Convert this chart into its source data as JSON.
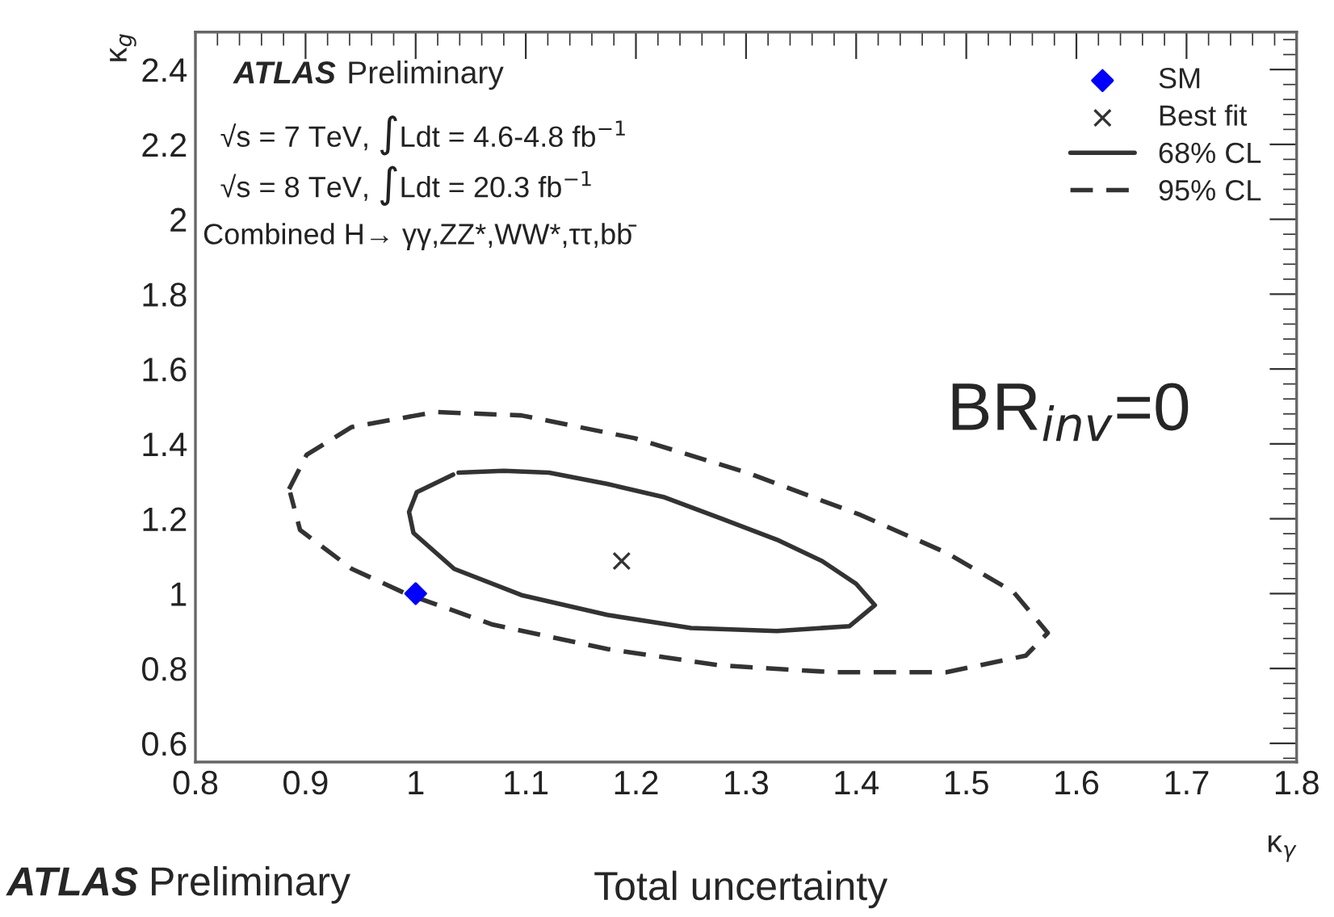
{
  "chart_data": {
    "type": "line",
    "xlabel": "κ$_{γ}$",
    "ylabel": "κ$_{g}$",
    "xlim": [
      0.8,
      1.8
    ],
    "ylim": [
      0.55,
      2.5
    ],
    "xticks": [
      0.8,
      0.9,
      1,
      1.1,
      1.2,
      1.3,
      1.4,
      1.5,
      1.6,
      1.7,
      1.8
    ],
    "yticks": [
      0.6,
      0.8,
      1,
      1.2,
      1.4,
      1.6,
      1.8,
      2,
      2.2,
      2.4
    ],
    "grid": false,
    "legend": "top right",
    "series": [
      {
        "name": "SM",
        "type": "scatter",
        "marker": "diamond",
        "color": "#0000ff",
        "x": [
          1.0
        ],
        "values": [
          1.0
        ]
      },
      {
        "name": "Best fit",
        "type": "scatter",
        "marker": "cross",
        "color": "#333333",
        "x": [
          1.187
        ],
        "values": [
          1.087
        ]
      },
      {
        "name": "68% CL",
        "type": "line",
        "line_style": "solid",
        "color": "#333333",
        "x": [
          1.039,
          1.08,
          1.121,
          1.174,
          1.225,
          1.277,
          1.328,
          1.369,
          1.4,
          1.417,
          1.394,
          1.328,
          1.25,
          1.174,
          1.096,
          1.035,
          0.998,
          0.994,
          1.001,
          1.034
        ],
        "values": [
          1.323,
          1.328,
          1.323,
          1.293,
          1.258,
          1.201,
          1.144,
          1.087,
          1.026,
          0.969,
          0.913,
          0.9,
          0.908,
          0.943,
          0.996,
          1.066,
          1.162,
          1.218,
          1.271,
          1.318
        ]
      },
      {
        "name": "95% CL",
        "line_style": "dashed",
        "color": "#333333",
        "x": [
          0.885,
          0.901,
          0.942,
          1.018,
          1.096,
          1.199,
          1.301,
          1.404,
          1.482,
          1.543,
          1.574,
          1.554,
          1.482,
          1.379,
          1.277,
          1.174,
          1.07,
          0.991,
          0.942,
          0.895,
          0.886
        ],
        "values": [
          1.279,
          1.371,
          1.445,
          1.485,
          1.476,
          1.415,
          1.323,
          1.21,
          1.109,
          1.004,
          0.895,
          0.834,
          0.79,
          0.79,
          0.808,
          0.852,
          0.917,
          1.0,
          1.066,
          1.17,
          1.27
        ]
      }
    ],
    "annotations": [
      "ATLAS Preliminary",
      "√s = 7 TeV, ∫Ldt = 4.6-4.8 fb$^{−1}$",
      "√s = 8 TeV, ∫Ldt = 20.3 fb$^{−1}$",
      "Combined H→ γγ,ZZ*,WW*,ττ,bb̄",
      "BR$_{inv}$=0",
      "ATLAS Preliminary",
      "Total uncertainty"
    ]
  }
}
